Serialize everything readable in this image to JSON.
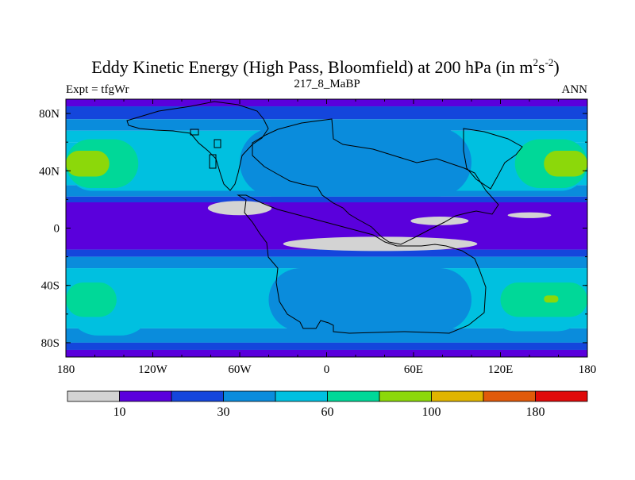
{
  "chart_data": {
    "type": "heatmap",
    "title": "Eddy Kinetic Energy (High Pass, Bloomfield) at 200 hPa (in m",
    "title_units": {
      "sup1": "2",
      "mid": "s",
      "sup2": "-2",
      "end": ")"
    },
    "subtitle": "217_8_MaBP",
    "left_label": "Expt = tfgWr",
    "right_label": "ANN",
    "x_ticks": [
      {
        "value": -180,
        "label": "180"
      },
      {
        "value": -120,
        "label": "120W"
      },
      {
        "value": -60,
        "label": "60W"
      },
      {
        "value": 0,
        "label": "0"
      },
      {
        "value": 60,
        "label": "60E"
      },
      {
        "value": 120,
        "label": "120E"
      },
      {
        "value": 180,
        "label": "180"
      }
    ],
    "y_ticks": [
      {
        "value": 80,
        "label": "80N"
      },
      {
        "value": 40,
        "label": "40N"
      },
      {
        "value": 0,
        "label": "0"
      },
      {
        "value": -40,
        "label": "40S"
      },
      {
        "value": -80,
        "label": "80S"
      }
    ],
    "xlim": [
      -180,
      180
    ],
    "ylim": [
      -90,
      90
    ],
    "levels": [
      10,
      20,
      30,
      45,
      60,
      80,
      100,
      140,
      180
    ],
    "colors": [
      "#d3d3d3",
      "#5a00dc",
      "#1446dc",
      "#0a8cdc",
      "#00c0e0",
      "#00d898",
      "#8cd80a",
      "#e0b400",
      "#e05a0a",
      "#e00a0a"
    ],
    "colorbar_labels": [
      {
        "boundary": 1,
        "label": "10"
      },
      {
        "boundary": 3,
        "label": "30"
      },
      {
        "boundary": 5,
        "label": "60"
      },
      {
        "boundary": 7,
        "label": "100"
      },
      {
        "boundary": 9,
        "label": "180"
      }
    ],
    "lat_bands": [
      {
        "lat": [
          90,
          85
        ],
        "level": 1
      },
      {
        "lat": [
          85,
          76
        ],
        "level": 2
      },
      {
        "lat": [
          76,
          68
        ],
        "level": 3
      },
      {
        "lat": [
          68,
          60
        ],
        "level": 4
      },
      {
        "lat": [
          60,
          30
        ],
        "level": 4
      },
      {
        "lat": [
          30,
          22
        ],
        "level": 3
      },
      {
        "lat": [
          22,
          18
        ],
        "level": 2
      },
      {
        "lat": [
          18,
          -15
        ],
        "level": 1
      },
      {
        "lat": [
          -15,
          -20
        ],
        "level": 2
      },
      {
        "lat": [
          -20,
          -28
        ],
        "level": 3
      },
      {
        "lat": [
          -28,
          -70
        ],
        "level": 4
      },
      {
        "lat": [
          -70,
          -80
        ],
        "level": 3
      },
      {
        "lat": [
          -80,
          -85
        ],
        "level": 2
      },
      {
        "lat": [
          -85,
          -90
        ],
        "level": 1
      }
    ],
    "patches": [
      {
        "lon": [
          -180,
          180
        ],
        "lat": [
          63,
          26
        ],
        "level": 4
      },
      {
        "lon": [
          -60,
          100
        ],
        "lat": [
          70,
          22
        ],
        "level": 3
      },
      {
        "lon": [
          -180,
          -130
        ],
        "lat": [
          62,
          28
        ],
        "level": 5
      },
      {
        "lon": [
          -180,
          -150
        ],
        "lat": [
          54,
          36
        ],
        "level": 6
      },
      {
        "lon": [
          130,
          180
        ],
        "lat": [
          62,
          28
        ],
        "level": 5
      },
      {
        "lon": [
          150,
          180
        ],
        "lat": [
          54,
          36
        ],
        "level": 6
      },
      {
        "lon": [
          -180,
          -120
        ],
        "lat": [
          -30,
          -75
        ],
        "level": 4
      },
      {
        "lon": [
          -180,
          -145
        ],
        "lat": [
          -38,
          -62
        ],
        "level": 5
      },
      {
        "lon": [
          110,
          180
        ],
        "lat": [
          -30,
          -72
        ],
        "level": 4
      },
      {
        "lon": [
          120,
          180
        ],
        "lat": [
          -38,
          -62
        ],
        "level": 5
      },
      {
        "lon": [
          150,
          160
        ],
        "lat": [
          -47,
          -52
        ],
        "level": 6
      },
      {
        "lon": [
          -40,
          100
        ],
        "lat": [
          -28,
          -72
        ],
        "level": 3
      }
    ],
    "minima": [
      {
        "lon": -60,
        "lat": 14,
        "rx": 22,
        "ry": 5,
        "level": 0
      },
      {
        "lon": 37,
        "lat": -11,
        "rx": 67,
        "ry": 5,
        "level": 0
      },
      {
        "lon": 78,
        "lat": 5,
        "rx": 20,
        "ry": 3,
        "level": 0
      },
      {
        "lon": 140,
        "lat": 9,
        "rx": 15,
        "ry": 2,
        "level": 0
      }
    ],
    "grid": false,
    "legend_position": "bottom"
  }
}
